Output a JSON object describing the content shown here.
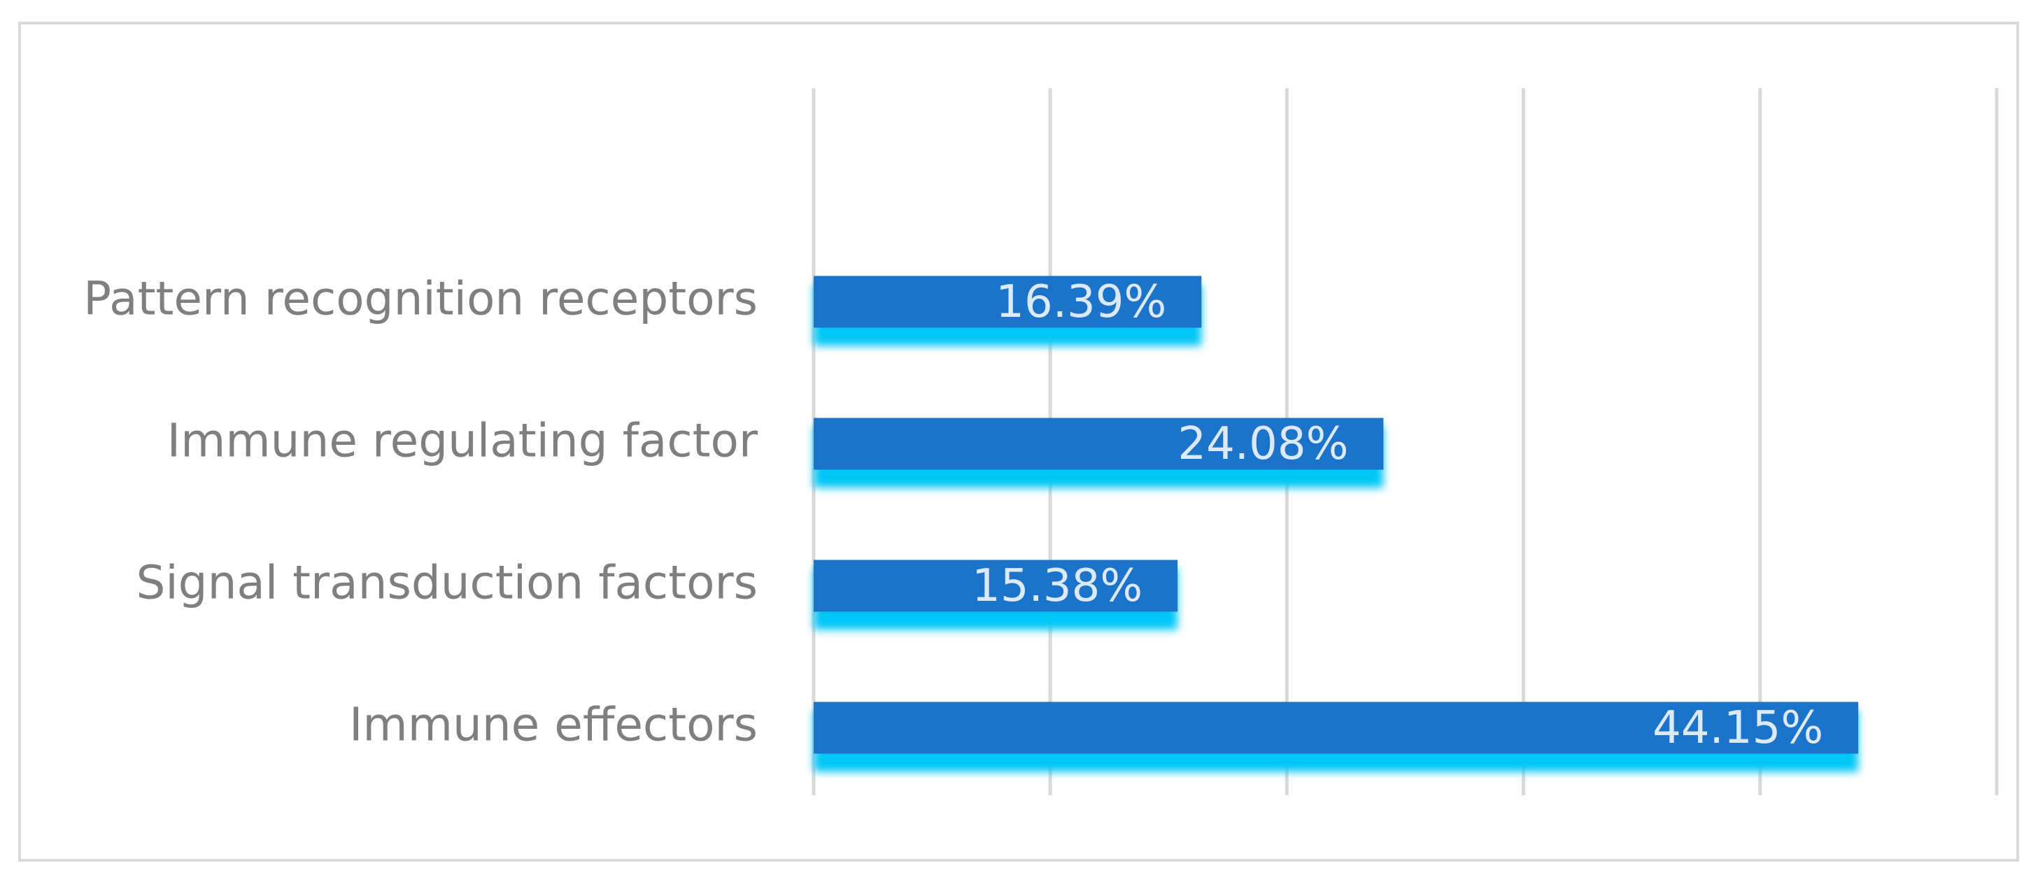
{
  "chart_data": {
    "type": "bar",
    "orientation": "horizontal",
    "categories": [
      "Pattern recognition receptors",
      "Immune regulating factor",
      "Signal transduction factors",
      "Immune effectors"
    ],
    "values": [
      16.39,
      24.08,
      15.38,
      44.15
    ],
    "value_labels": [
      "16.39%",
      "24.08%",
      "15.38%",
      "44.15%"
    ],
    "color": "#1b74c9",
    "xlim": [
      0,
      50
    ],
    "xticks": [
      0,
      10,
      20,
      30,
      40,
      50
    ],
    "grid": true
  }
}
